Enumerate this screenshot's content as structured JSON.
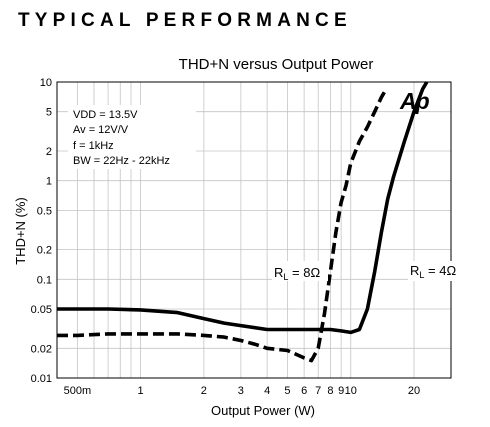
{
  "heading": "TYPICAL PERFORMANCE",
  "chart_data": {
    "type": "line",
    "title": "THD+N versus Output Power",
    "xlabel": "Output Power (W)",
    "ylabel": "THD+N (%)",
    "xscale": "log",
    "yscale": "log",
    "xlim": [
      0.4,
      30
    ],
    "ylim": [
      0.01,
      10
    ],
    "grid": true,
    "x_tick_values": [
      0.5,
      1,
      2,
      3,
      4,
      5,
      6,
      7,
      8,
      9,
      10,
      20
    ],
    "x_tick_labels": [
      "500m",
      "1",
      "2",
      "3",
      "4",
      "5",
      "6",
      "7",
      "8",
      "9",
      "10",
      "20"
    ],
    "y_tick_values": [
      0.01,
      0.02,
      0.05,
      0.1,
      0.2,
      0.5,
      1,
      2,
      5,
      10
    ],
    "y_tick_labels": [
      "0.01",
      "0.02",
      "0.05",
      "0.1",
      "0.2",
      "0.5",
      "1",
      "2",
      "5",
      "10"
    ],
    "conditions": [
      "VDD = 13.5V",
      "Av = 12V/V",
      "f = 1kHz",
      "BW = 22Hz - 22kHz"
    ],
    "logo": "Ap",
    "series": [
      {
        "name": "RL = 8Ω",
        "style": "dashed",
        "x": [
          0.4,
          0.5,
          0.7,
          1,
          1.5,
          2,
          2.5,
          3,
          3.5,
          4,
          5,
          6,
          6.5,
          7,
          7.5,
          8,
          8.5,
          9,
          9.5,
          10,
          11,
          12,
          13,
          14,
          14.5
        ],
        "y": [
          0.027,
          0.027,
          0.028,
          0.028,
          0.028,
          0.027,
          0.026,
          0.024,
          0.022,
          0.02,
          0.019,
          0.016,
          0.015,
          0.02,
          0.045,
          0.12,
          0.3,
          0.6,
          0.9,
          1.5,
          2.5,
          3.5,
          5,
          7,
          8
        ]
      },
      {
        "name": "RL = 4Ω",
        "style": "solid",
        "x": [
          0.4,
          0.5,
          0.7,
          1,
          1.5,
          2,
          2.5,
          3,
          4,
          5,
          6,
          7,
          8,
          9,
          10,
          11,
          12,
          13,
          14,
          15,
          16,
          18,
          20,
          22,
          23
        ],
        "y": [
          0.05,
          0.05,
          0.05,
          0.049,
          0.046,
          0.04,
          0.036,
          0.034,
          0.031,
          0.031,
          0.031,
          0.031,
          0.031,
          0.03,
          0.029,
          0.031,
          0.05,
          0.12,
          0.3,
          0.65,
          1.1,
          2.5,
          5,
          8.5,
          10
        ]
      }
    ],
    "series_labels": [
      {
        "prefix": "R",
        "sub": "L",
        "suffix": " = 8Ω"
      },
      {
        "prefix": "R",
        "sub": "L",
        "suffix": " = 4Ω"
      }
    ]
  }
}
